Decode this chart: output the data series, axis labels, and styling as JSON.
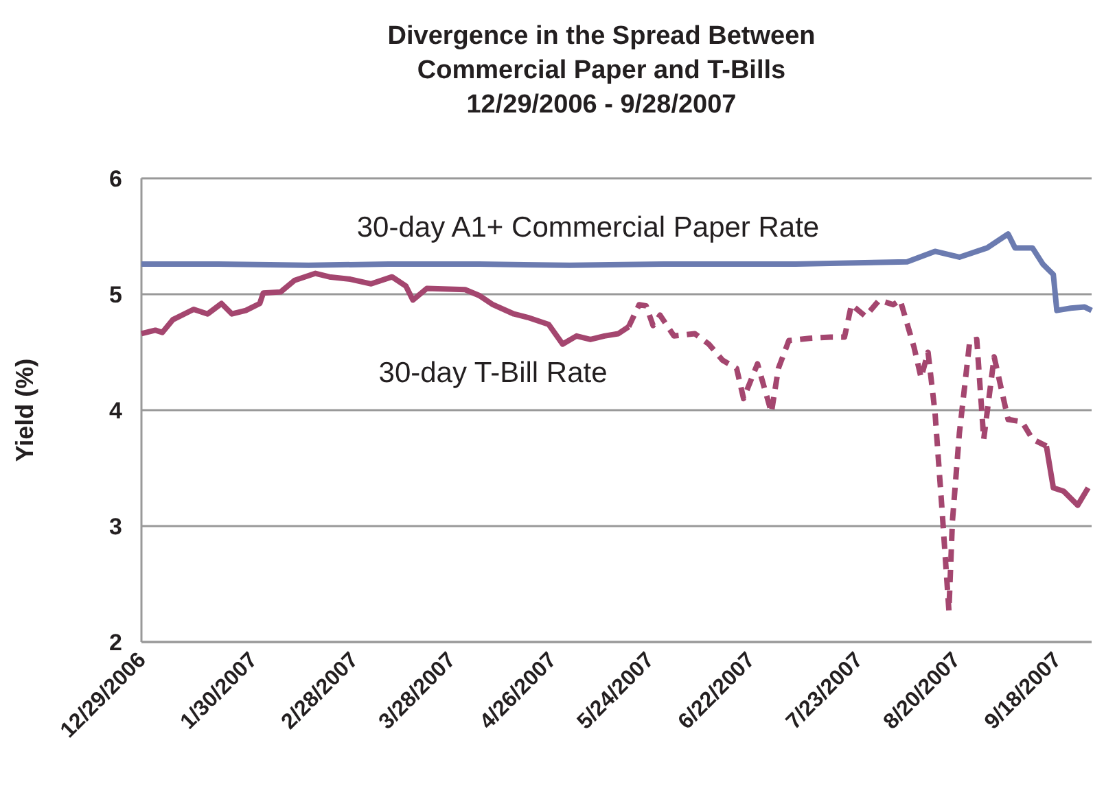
{
  "chart_data": {
    "type": "line",
    "title": "Divergence in the Spread Between Commercial Paper and T-Bills",
    "subtitle": "12/29/2006 - 9/28/2007",
    "ylabel": "Yield (%)",
    "xlim": [
      "2006-12-29",
      "2007-09-28"
    ],
    "xticks": [
      {
        "value": "2006-12-29",
        "label": "12/29/2006"
      },
      {
        "value": "2007-01-30",
        "label": "1/30/2007"
      },
      {
        "value": "2007-02-28",
        "label": "2/28/2007"
      },
      {
        "value": "2007-03-28",
        "label": "3/28/2007"
      },
      {
        "value": "2007-04-26",
        "label": "4/26/2007"
      },
      {
        "value": "2007-05-24",
        "label": "5/24/2007"
      },
      {
        "value": "2007-06-22",
        "label": "6/22/2007"
      },
      {
        "value": "2007-07-23",
        "label": "7/23/2007"
      },
      {
        "value": "2007-08-20",
        "label": "8/20/2007"
      },
      {
        "value": "2007-09-18",
        "label": "9/18/2007"
      }
    ],
    "ylim": [
      2,
      6
    ],
    "yticks": [
      2,
      3,
      4,
      5,
      6
    ],
    "grid": "y",
    "line_style": "solid",
    "marker": "none",
    "series": [
      {
        "name": "30-day A1+ Commercial Paper Rate",
        "color": "#6b7bb0",
        "x": [
          "2006-12-29",
          "2007-01-20",
          "2007-02-15",
          "2007-03-10",
          "2007-04-05",
          "2007-05-01",
          "2007-05-28",
          "2007-06-20",
          "2007-07-05",
          "2007-08-06",
          "2007-08-14",
          "2007-08-21",
          "2007-08-29",
          "2007-09-04",
          "2007-09-06",
          "2007-09-11",
          "2007-09-14",
          "2007-09-17",
          "2007-09-18",
          "2007-09-22",
          "2007-09-26",
          "2007-09-28"
        ],
        "values": [
          5.26,
          5.26,
          5.25,
          5.26,
          5.26,
          5.25,
          5.26,
          5.26,
          5.26,
          5.28,
          5.37,
          5.32,
          5.4,
          5.52,
          5.4,
          5.4,
          5.26,
          5.17,
          4.86,
          4.88,
          4.89,
          4.86
        ]
      },
      {
        "name": "30-day T-Bill Rate",
        "color": "#a4466f",
        "x": [
          "2006-12-29",
          "2007-01-02",
          "2007-01-04",
          "2007-01-07",
          "2007-01-13",
          "2007-01-17",
          "2007-01-21",
          "2007-01-24",
          "2007-01-28",
          "2007-02-01",
          "2007-02-02",
          "2007-02-07",
          "2007-02-11",
          "2007-02-17",
          "2007-02-21",
          "2007-02-27",
          "2007-03-05",
          "2007-03-11",
          "2007-03-15",
          "2007-03-17",
          "2007-03-21",
          "2007-04-01",
          "2007-04-05",
          "2007-04-09",
          "2007-04-15",
          "2007-04-19",
          "2007-04-25",
          "2007-04-29",
          "2007-05-03",
          "2007-05-07",
          "2007-05-11",
          "2007-05-15",
          "2007-05-18",
          "2007-06-30",
          "2007-09-15",
          "2007-09-17",
          "2007-09-20",
          "2007-09-24",
          "2007-09-27"
        ],
        "values": [
          4.66,
          4.69,
          4.67,
          4.78,
          4.87,
          4.83,
          4.92,
          4.83,
          4.86,
          4.92,
          5.01,
          5.02,
          5.12,
          5.18,
          5.15,
          5.13,
          5.09,
          5.15,
          5.07,
          4.95,
          5.05,
          5.04,
          4.99,
          4.91,
          4.83,
          4.8,
          4.74,
          4.57,
          4.64,
          4.61,
          4.64,
          4.66,
          4.72,
          null,
          3.69,
          3.33,
          3.3,
          3.18,
          3.33
        ]
      },
      {
        "color": "#a4466f",
        "line_style": "dashed",
        "x": [
          "2007-05-18",
          "2007-05-21",
          "2007-05-23",
          "2007-05-25",
          "2007-05-27",
          "2007-05-31",
          "2007-06-06",
          "2007-06-10",
          "2007-06-14",
          "2007-06-18",
          "2007-06-20",
          "2007-06-24",
          "2007-06-28",
          "2007-06-30",
          "2007-07-03",
          "2007-07-09",
          "2007-07-15",
          "2007-07-19",
          "2007-07-21",
          "2007-07-25",
          "2007-07-29",
          "2007-08-02",
          "2007-08-04",
          "2007-08-08",
          "2007-08-10",
          "2007-08-12",
          "2007-08-14",
          "2007-08-16",
          "2007-08-18",
          "2007-08-19",
          "2007-08-21",
          "2007-08-24",
          "2007-08-26",
          "2007-08-28",
          "2007-08-31",
          "2007-09-04",
          "2007-09-08",
          "2007-09-11",
          "2007-09-15"
        ],
        "values": [
          4.72,
          4.91,
          4.9,
          4.73,
          4.82,
          4.64,
          4.66,
          4.57,
          4.43,
          4.36,
          4.1,
          4.4,
          3.98,
          4.36,
          4.6,
          4.62,
          4.63,
          4.63,
          4.91,
          4.81,
          4.95,
          4.91,
          4.95,
          4.54,
          4.28,
          4.5,
          3.98,
          3.15,
          2.27,
          3.04,
          3.8,
          4.6,
          4.61,
          3.75,
          4.46,
          3.92,
          3.9,
          3.75,
          3.69
        ]
      }
    ]
  }
}
